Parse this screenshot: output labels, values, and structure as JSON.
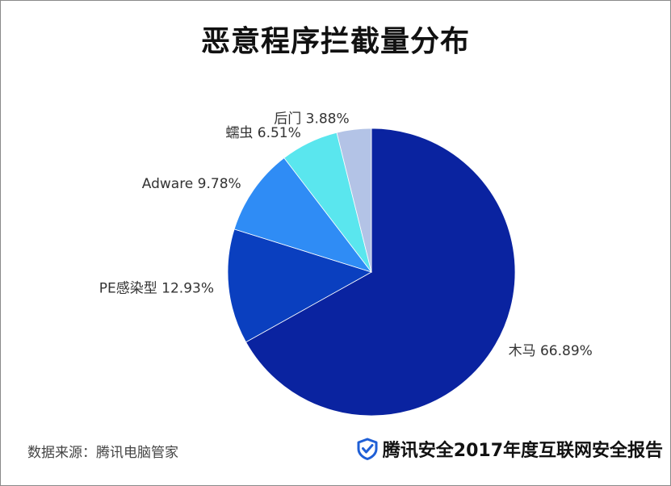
{
  "title": "恶意程序拦截量分布",
  "source_text": "数据来源：腾讯电脑管家",
  "brand": {
    "text": "腾讯安全2017年度互联网安全报告",
    "icon": "shield-check-icon",
    "icon_color": "#1f5fd6"
  },
  "chart_data": {
    "type": "pie",
    "title": "恶意程序拦截量分布",
    "start_angle_deg": 0,
    "direction": "clockwise",
    "slices": [
      {
        "label": "木马",
        "value": 66.89,
        "display": "木马 66.89%",
        "color": "#0a23a0"
      },
      {
        "label": "PE感染型",
        "value": 12.93,
        "display": "PE感染型 12.93%",
        "color": "#0a3fbf"
      },
      {
        "label": "Adware",
        "value": 9.78,
        "display": "Adware 9.78%",
        "color": "#2f8cf5"
      },
      {
        "label": "蠕虫",
        "value": 6.51,
        "display": "蠕虫 6.51%",
        "color": "#5ae6ee"
      },
      {
        "label": "后门",
        "value": 3.88,
        "display": "后门 3.88%",
        "color": "#b3c3e6"
      }
    ]
  }
}
